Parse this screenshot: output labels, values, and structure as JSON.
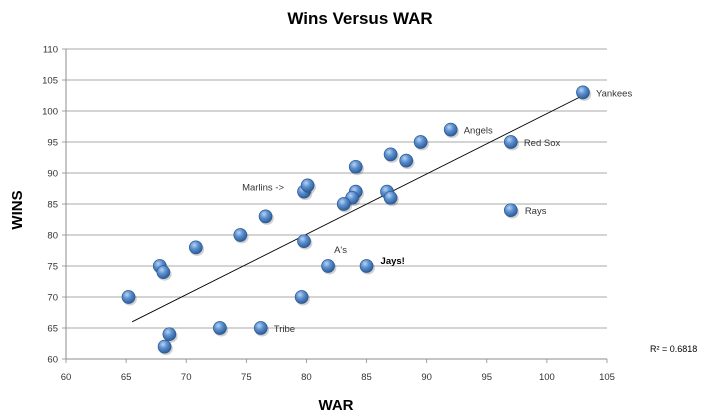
{
  "chart_data": {
    "type": "scatter",
    "title": "Wins Versus WAR",
    "xlabel": "WAR",
    "ylabel": "WINS",
    "xlim": [
      60,
      105
    ],
    "ylim": [
      60,
      110
    ],
    "xticks": [
      "60",
      "65",
      "70",
      "75",
      "80",
      "85",
      "90",
      "95",
      "100",
      "105"
    ],
    "yticks": [
      "60",
      "65",
      "70",
      "75",
      "80",
      "85",
      "90",
      "95",
      "100",
      "105",
      "110"
    ],
    "grid": "horizontal",
    "marker_color": "#4f81bd",
    "points": [
      {
        "x": 103.0,
        "y": 103,
        "label": "Yankees"
      },
      {
        "x": 92.0,
        "y": 97,
        "label": "Angels"
      },
      {
        "x": 97.0,
        "y": 95,
        "label": "Red Sox"
      },
      {
        "x": 97.0,
        "y": 84,
        "label": "Rays"
      },
      {
        "x": 79.8,
        "y": 87,
        "label": "Marlins ->"
      },
      {
        "x": 81.8,
        "y": 75,
        "label": "A's"
      },
      {
        "x": 85.0,
        "y": 75,
        "label": "Jays!"
      },
      {
        "x": 76.2,
        "y": 65,
        "label": "Tribe"
      },
      {
        "x": 89.5,
        "y": 95
      },
      {
        "x": 87.0,
        "y": 93
      },
      {
        "x": 88.3,
        "y": 92
      },
      {
        "x": 84.1,
        "y": 91
      },
      {
        "x": 80.1,
        "y": 88
      },
      {
        "x": 84.1,
        "y": 87
      },
      {
        "x": 86.7,
        "y": 87
      },
      {
        "x": 83.8,
        "y": 86
      },
      {
        "x": 87.0,
        "y": 86
      },
      {
        "x": 83.1,
        "y": 85
      },
      {
        "x": 76.6,
        "y": 83
      },
      {
        "x": 74.5,
        "y": 80
      },
      {
        "x": 79.8,
        "y": 79
      },
      {
        "x": 70.8,
        "y": 78
      },
      {
        "x": 67.8,
        "y": 75
      },
      {
        "x": 68.1,
        "y": 74
      },
      {
        "x": 65.2,
        "y": 70
      },
      {
        "x": 79.6,
        "y": 70
      },
      {
        "x": 72.8,
        "y": 65
      },
      {
        "x": 68.6,
        "y": 64
      },
      {
        "x": 68.2,
        "y": 62
      }
    ],
    "trendline": {
      "x": [
        65.5,
        103.0
      ],
      "y": [
        66.0,
        102.5
      ]
    },
    "r_squared_label": "R² = 0.6818"
  }
}
